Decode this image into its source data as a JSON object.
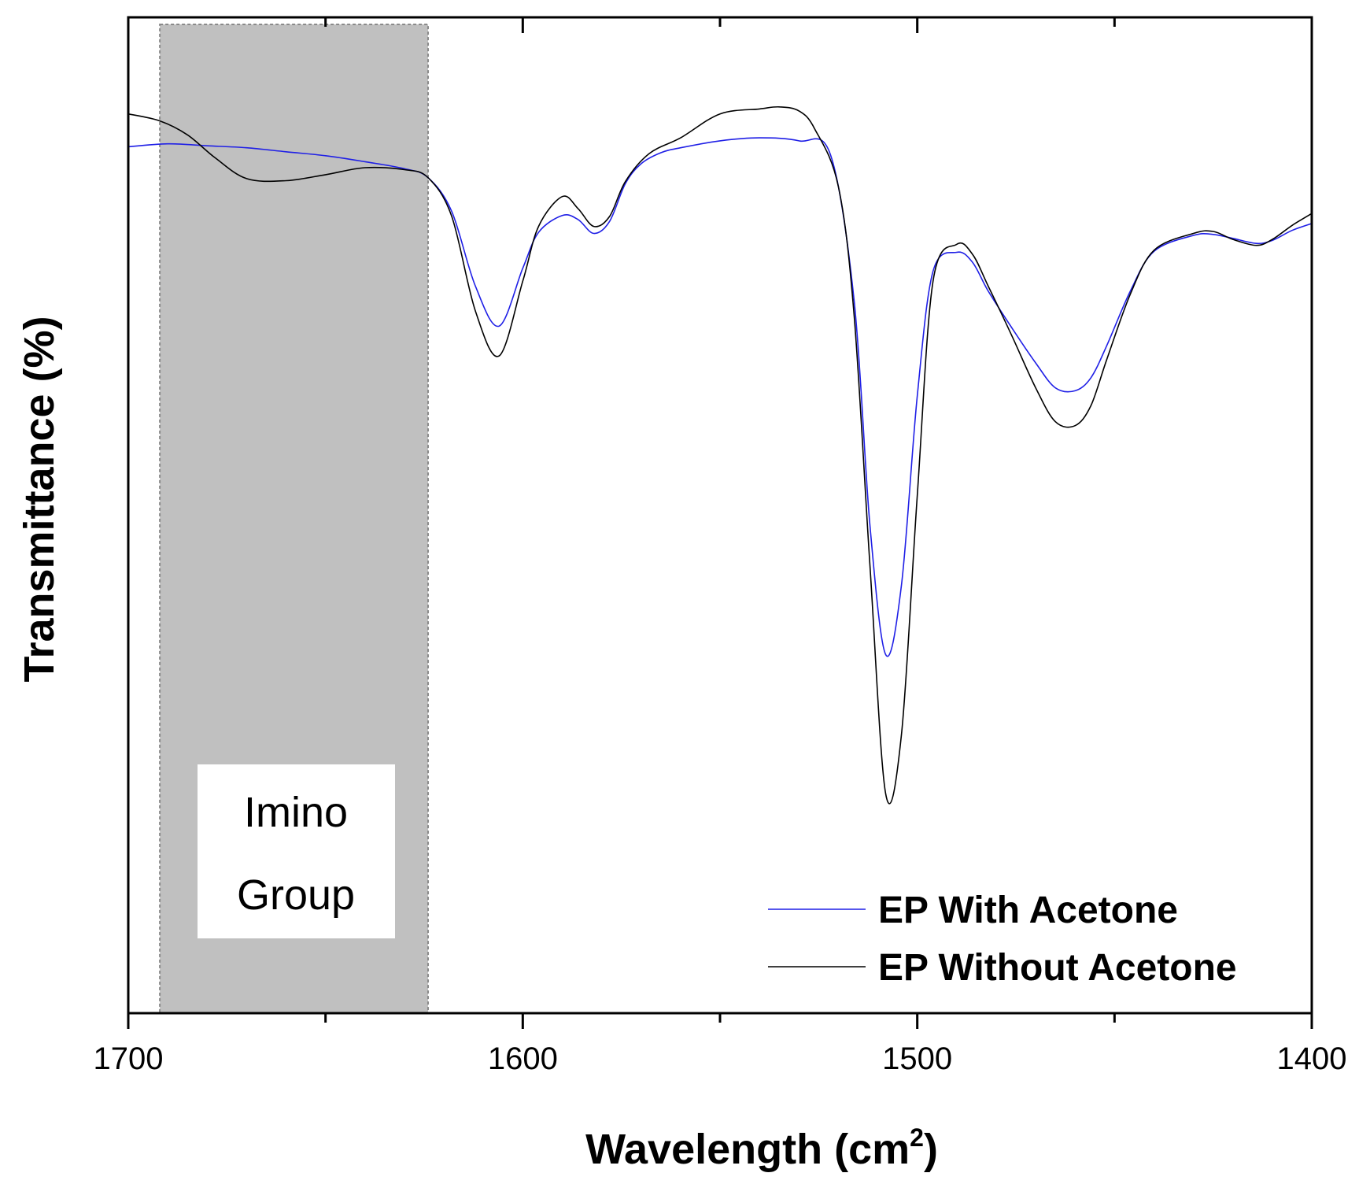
{
  "chart_data": {
    "type": "line",
    "title": "",
    "xlabel": "Wavelength (cm",
    "xlabel_superscript": "2",
    "xlabel_suffix": ")",
    "ylabel": "Transmittance (%)",
    "xlim": [
      1700,
      1400
    ],
    "ylim": [
      0,
      100
    ],
    "x_reversed": true,
    "x_ticks": [
      1700,
      1600,
      1500,
      1400
    ],
    "x_tick_labels": [
      "1700",
      "1600",
      "1500",
      "1400"
    ],
    "y_ticks_shown": false,
    "grid": false,
    "legend_position": "bottom-right",
    "annotation": {
      "lines": [
        "Imino",
        "Group"
      ],
      "x_range": [
        1692,
        1624
      ],
      "shaded_color": "#c0c0c0"
    },
    "series": [
      {
        "name": "EP With Acetone",
        "color": "#1f1fe6",
        "x": [
          1700,
          1690,
          1680,
          1670,
          1660,
          1650,
          1640,
          1630,
          1624,
          1618,
          1612,
          1606,
          1600,
          1596,
          1590,
          1586,
          1582,
          1578,
          1574,
          1570,
          1565,
          1560,
          1550,
          1540,
          1530,
          1522,
          1516,
          1512,
          1508,
          1504,
          1500,
          1496,
          1490,
          1486,
          1482,
          1476,
          1470,
          1465,
          1460,
          1456,
          1452,
          1446,
          1440,
          1430,
          1425,
          1420,
          1414,
          1410,
          1405,
          1400
        ],
        "y": [
          87.0,
          87.3,
          87.1,
          86.9,
          86.5,
          86.1,
          85.5,
          84.8,
          83.9,
          80.5,
          73.0,
          69.0,
          74.8,
          78.4,
          80.1,
          79.7,
          78.3,
          79.5,
          83.3,
          85.3,
          86.4,
          86.9,
          87.6,
          87.9,
          87.6,
          86.2,
          71.5,
          49.0,
          36.0,
          43.0,
          62.0,
          74.5,
          76.4,
          75.4,
          72.5,
          68.8,
          65.3,
          62.8,
          62.5,
          63.8,
          67.0,
          72.5,
          76.5,
          78.1,
          78.2,
          77.8,
          77.3,
          77.6,
          78.6,
          79.3
        ]
      },
      {
        "name": "EP Without Acetone",
        "color": "#000000",
        "x": [
          1700,
          1692,
          1685,
          1678,
          1670,
          1660,
          1650,
          1640,
          1630,
          1624,
          1618,
          1612,
          1606,
          1600,
          1596,
          1590,
          1586,
          1582,
          1578,
          1574,
          1568,
          1560,
          1550,
          1540,
          1535,
          1530,
          1526,
          1520,
          1516,
          1512,
          1508,
          1504,
          1500,
          1496,
          1490,
          1486,
          1482,
          1476,
          1470,
          1465,
          1460,
          1456,
          1452,
          1446,
          1440,
          1430,
          1425,
          1420,
          1414,
          1410,
          1405,
          1400
        ],
        "y": [
          90.3,
          89.6,
          88.2,
          85.9,
          83.8,
          83.6,
          84.2,
          84.9,
          84.7,
          83.9,
          80.0,
          70.5,
          66.0,
          73.5,
          79.0,
          82.0,
          80.8,
          79.0,
          80.0,
          83.5,
          86.3,
          87.9,
          90.3,
          90.8,
          91.0,
          90.6,
          88.8,
          83.0,
          70.0,
          45.0,
          22.0,
          28.0,
          52.0,
          73.5,
          77.2,
          76.2,
          73.0,
          68.0,
          62.8,
          59.4,
          59.0,
          61.0,
          65.6,
          72.2,
          76.6,
          78.3,
          78.5,
          77.7,
          77.1,
          77.7,
          79.1,
          80.3
        ]
      }
    ]
  }
}
